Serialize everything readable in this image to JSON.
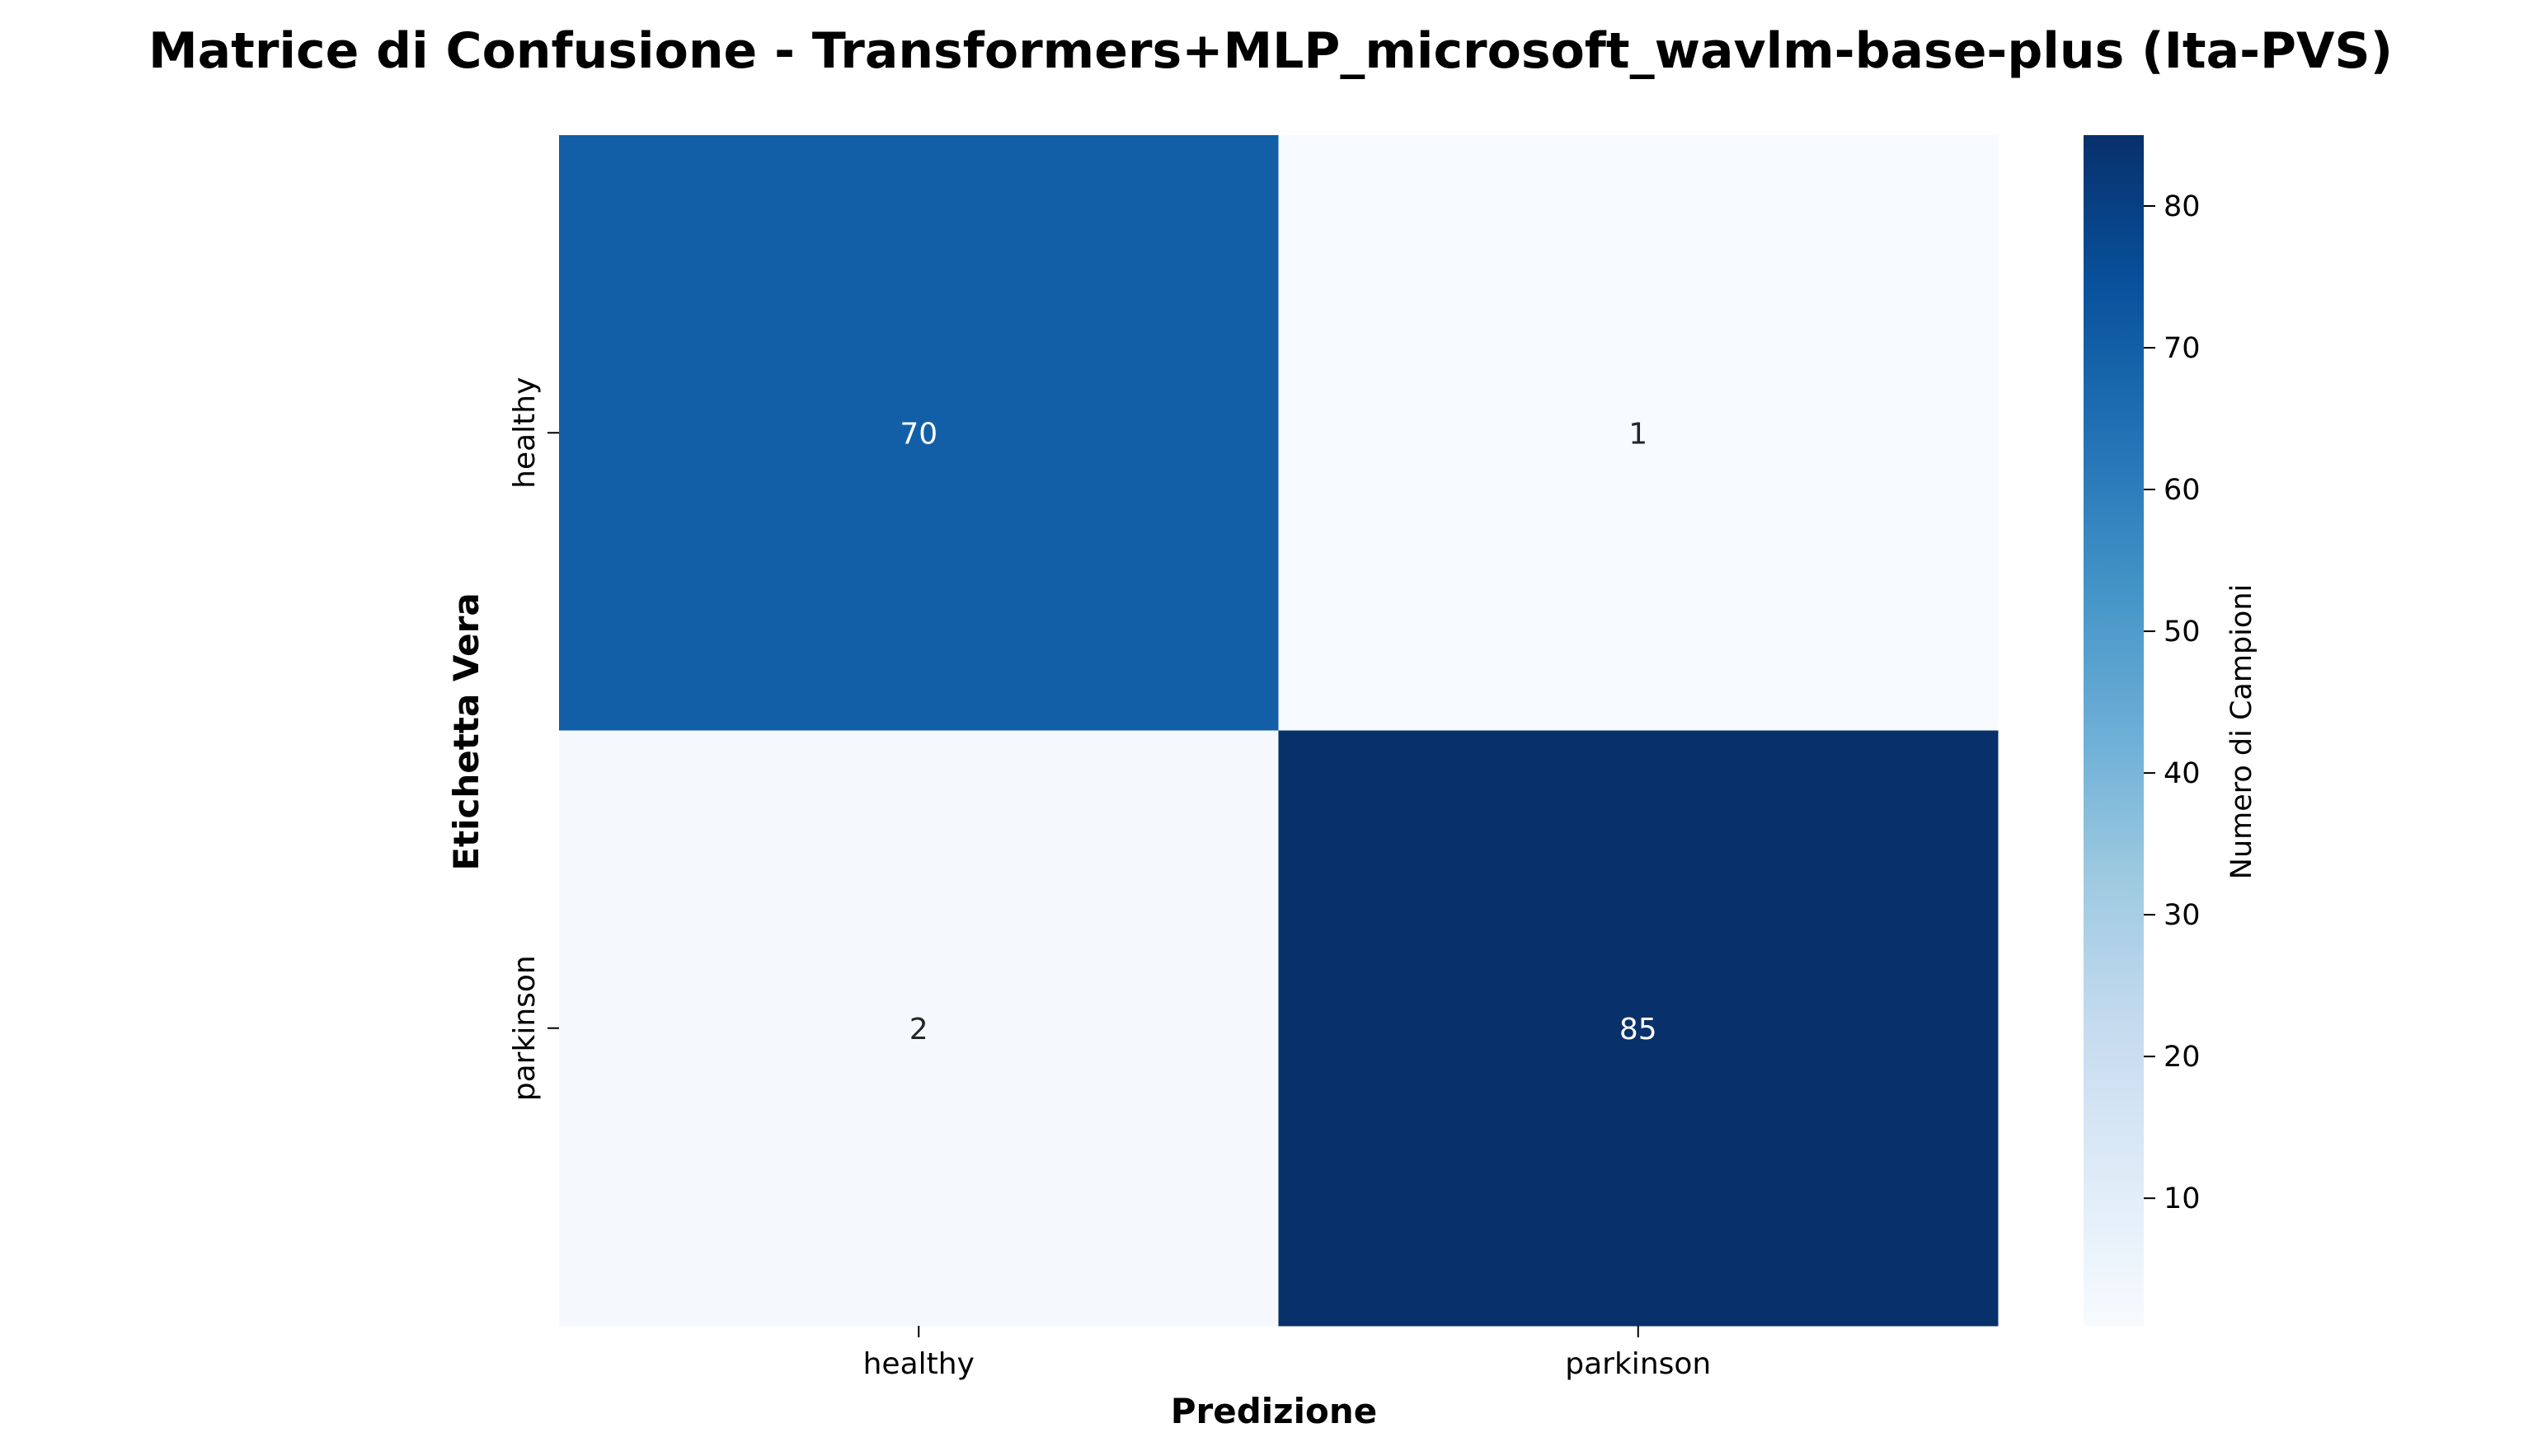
{
  "chart_data": {
    "type": "heatmap",
    "title": "Matrice di Confusione - Transformers+MLP_microsoft_wavlm-base-plus (Ita-PVS)",
    "xlabel": "Predizione",
    "ylabel": "Etichetta Vera",
    "x_categories": [
      "healthy",
      "parkinson"
    ],
    "y_categories": [
      "healthy",
      "parkinson"
    ],
    "values": [
      [
        70,
        1
      ],
      [
        2,
        85
      ]
    ],
    "colormap": "Blues",
    "colorbar": {
      "label": "Numero di Campioni",
      "range": [
        1,
        85
      ],
      "ticks": [
        10,
        20,
        30,
        40,
        50,
        60,
        70,
        80
      ]
    },
    "grid": false,
    "legend": "none"
  }
}
